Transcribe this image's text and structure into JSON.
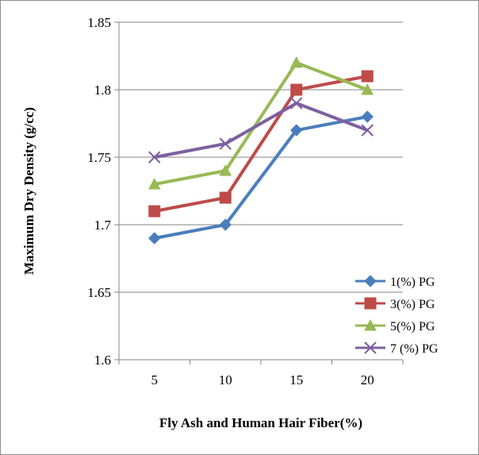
{
  "chart_data": {
    "type": "line",
    "title": "",
    "xlabel": "Fly Ash and Human Hair Fiber(%)",
    "ylabel": "Maximum Dry  Density (g/cc)",
    "categories": [
      "5",
      "10",
      "15",
      "20"
    ],
    "ylim": [
      1.6,
      1.85
    ],
    "yticks": [
      "1.6",
      "1.65",
      "1.7",
      "1.75",
      "1.8",
      "1.85"
    ],
    "grid": "horizontal",
    "legend": "right",
    "series": [
      {
        "name": "1(%) PG",
        "values": [
          1.69,
          1.7,
          1.77,
          1.78
        ],
        "color": "#4a7ebb",
        "marker": "diamond"
      },
      {
        "name": "3(%) PG",
        "values": [
          1.71,
          1.72,
          1.8,
          1.81
        ],
        "color": "#be4b48",
        "marker": "square"
      },
      {
        "name": "5(%) PG",
        "values": [
          1.73,
          1.74,
          1.82,
          1.8
        ],
        "color": "#98b954",
        "marker": "triangle"
      },
      {
        "name": "7 (%) PG",
        "values": [
          1.75,
          1.76,
          1.79,
          1.77
        ],
        "color": "#7d60a0",
        "marker": "x"
      }
    ]
  }
}
